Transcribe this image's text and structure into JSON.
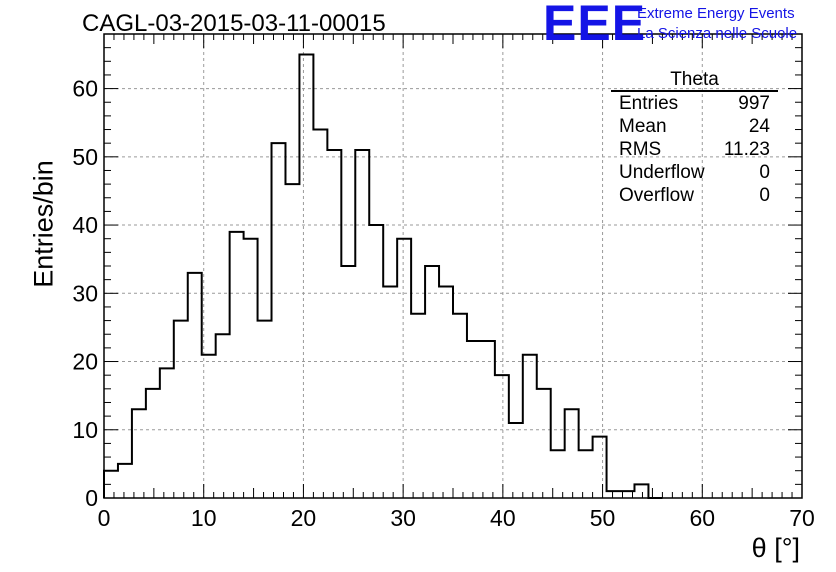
{
  "title": "CAGL-03-2015-03-11-00015",
  "logo": {
    "mark": "EEE",
    "line1": "Extreme Energy Events",
    "line2": "La Scienza nelle Scuole"
  },
  "stats": {
    "name": "Theta",
    "rows": [
      {
        "label": "Entries",
        "value": "997"
      },
      {
        "label": "Mean",
        "value": "24"
      },
      {
        "label": "RMS",
        "value": "11.23"
      },
      {
        "label": "Underflow",
        "value": "0"
      },
      {
        "label": "Overflow",
        "value": "0"
      }
    ]
  },
  "chart_data": {
    "type": "bar",
    "title": "CAGL-03-2015-03-11-00015",
    "xlabel": "θ [°]",
    "ylabel": "Entries/bin",
    "xlim": [
      0,
      70
    ],
    "ylim": [
      0,
      68
    ],
    "bin_width": 1.4,
    "bin_edges_start": 0,
    "values": [
      4,
      5,
      13,
      16,
      19,
      26,
      33,
      21,
      24,
      39,
      38,
      26,
      52,
      46,
      65,
      54,
      51,
      34,
      51,
      40,
      31,
      38,
      27,
      34,
      31,
      27,
      23,
      23,
      18,
      11,
      21,
      16,
      7,
      13,
      7,
      9,
      1,
      1,
      2,
      0
    ],
    "xticks": [
      0,
      10,
      20,
      30,
      40,
      50,
      60,
      70
    ],
    "yticks": [
      0,
      10,
      20,
      30,
      40,
      50,
      60
    ],
    "grid": true,
    "style": "step-histogram"
  }
}
